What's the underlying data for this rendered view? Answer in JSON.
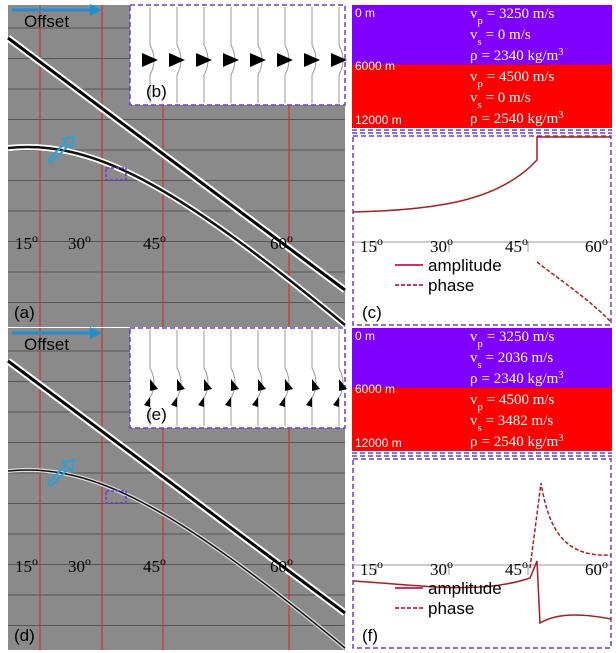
{
  "panels": [
    {
      "image_label": "(a)",
      "offset_label": "Offset",
      "inset_label": "(b)",
      "angle_labels": [
        {
          "text": "15",
          "sup": "o"
        },
        {
          "text": "30",
          "sup": "o"
        },
        {
          "text": "45",
          "sup": "o"
        },
        {
          "text": "60",
          "sup": "o"
        }
      ],
      "model": {
        "depths": [
          "0 m",
          "6000 m",
          "12000 m"
        ],
        "layers": [
          {
            "params": [
              {
                "sym": "v",
                "sub": "p",
                "text": "= 3250 m/s"
              },
              {
                "sym": "v",
                "sub": "s",
                "text": "= 0 m/s"
              },
              {
                "sym": "ρ",
                "text": "= 2340 kg/m",
                "sup": "3"
              }
            ]
          },
          {
            "params": [
              {
                "sym": "v",
                "sub": "p",
                "text": "= 4500 m/s"
              },
              {
                "sym": "v",
                "sub": "s",
                "text": "= 0 m/s"
              },
              {
                "sym": "ρ",
                "text": "= 2540 kg/m",
                "sup": "3"
              }
            ]
          }
        ]
      },
      "plot": {
        "label": "(c)",
        "angle_labels": [
          {
            "text": "15",
            "sup": "o"
          },
          {
            "text": "30",
            "sup": "o"
          },
          {
            "text": "45",
            "sup": "o"
          },
          {
            "text": "60",
            "sup": "o"
          }
        ],
        "legend": [
          "amplitude",
          "phase"
        ]
      }
    },
    {
      "image_label": "(d)",
      "offset_label": "Offset",
      "inset_label": "(e)",
      "angle_labels": [
        {
          "text": "15",
          "sup": "o"
        },
        {
          "text": "30",
          "sup": "o"
        },
        {
          "text": "45",
          "sup": "o"
        },
        {
          "text": "60",
          "sup": "o"
        }
      ],
      "model": {
        "depths": [
          "0 m",
          "6000 m",
          "12000 m"
        ],
        "layers": [
          {
            "params": [
              {
                "sym": "v",
                "sub": "p",
                "text": "= 3250 m/s"
              },
              {
                "sym": "v",
                "sub": "s",
                "text": "= 2036 m/s"
              },
              {
                "sym": "ρ",
                "text": "= 2340 kg/m",
                "sup": "3"
              }
            ]
          },
          {
            "params": [
              {
                "sym": "v",
                "sub": "p",
                "text": "= 4500 m/s"
              },
              {
                "sym": "v",
                "sub": "s",
                "text": "= 3482 m/s"
              },
              {
                "sym": "ρ",
                "text": "= 2540 kg/m",
                "sup": "3"
              }
            ]
          }
        ]
      },
      "plot": {
        "label": "(f)",
        "angle_labels": [
          {
            "text": "15",
            "sup": "o"
          },
          {
            "text": "30",
            "sup": "o"
          },
          {
            "text": "45",
            "sup": "o"
          },
          {
            "text": "60",
            "sup": "o"
          }
        ],
        "legend": [
          "amplitude",
          "phase"
        ]
      }
    }
  ]
}
